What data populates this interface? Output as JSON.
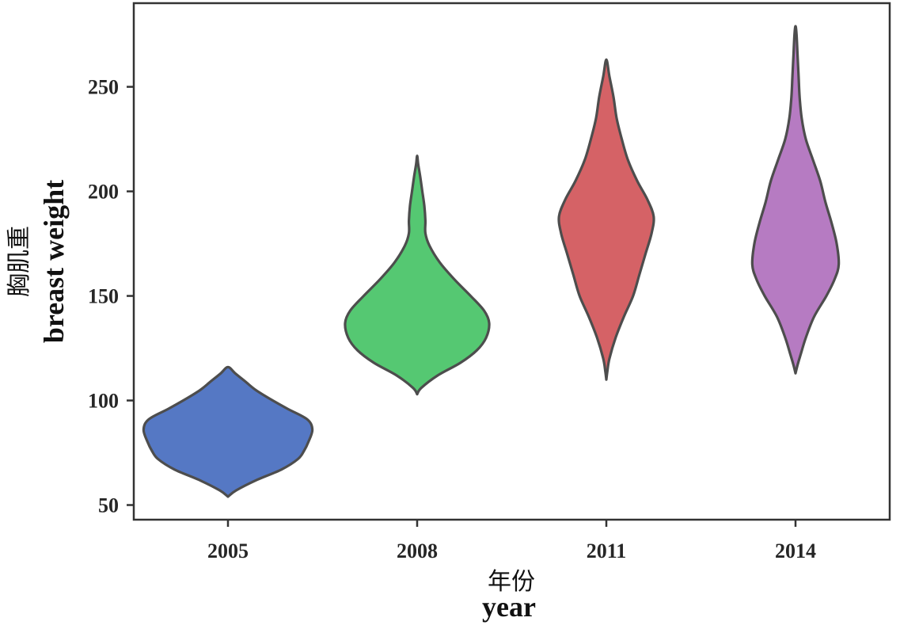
{
  "chart_data": {
    "type": "violin",
    "xlabel_cn": "年份",
    "xlabel_en": "year",
    "ylabel_cn": "胸肌重",
    "ylabel_en": "breast weight",
    "categories": [
      "2005",
      "2008",
      "2011",
      "2014"
    ],
    "yticks": [
      50,
      100,
      150,
      200,
      250
    ],
    "ylim": [
      43,
      290
    ],
    "series": [
      {
        "name": "2005",
        "color": "#5578c4",
        "min": 54,
        "max": 116,
        "profile": [
          [
            54,
            0
          ],
          [
            57,
            8
          ],
          [
            62,
            28
          ],
          [
            67,
            52
          ],
          [
            72,
            68
          ],
          [
            76,
            74
          ],
          [
            80,
            78
          ],
          [
            86,
            82
          ],
          [
            91,
            77
          ],
          [
            96,
            58
          ],
          [
            101,
            40
          ],
          [
            105,
            27
          ],
          [
            109,
            17
          ],
          [
            113,
            7
          ],
          [
            116,
            0
          ]
        ]
      },
      {
        "name": "2008",
        "color": "#55c872",
        "min": 103,
        "max": 217,
        "profile": [
          [
            103,
            0
          ],
          [
            106,
            4
          ],
          [
            112,
            20
          ],
          [
            118,
            42
          ],
          [
            124,
            58
          ],
          [
            130,
            67
          ],
          [
            137,
            70
          ],
          [
            143,
            65
          ],
          [
            150,
            52
          ],
          [
            158,
            36
          ],
          [
            166,
            22
          ],
          [
            174,
            12
          ],
          [
            180,
            8
          ],
          [
            186,
            8
          ],
          [
            193,
            7
          ],
          [
            200,
            5
          ],
          [
            207,
            3
          ],
          [
            213,
            1
          ],
          [
            217,
            0
          ]
        ]
      },
      {
        "name": "2011",
        "color": "#d56266",
        "min": 110,
        "max": 263,
        "profile": [
          [
            110,
            0
          ],
          [
            114,
            1
          ],
          [
            120,
            3
          ],
          [
            130,
            9
          ],
          [
            140,
            17
          ],
          [
            150,
            26
          ],
          [
            160,
            32
          ],
          [
            170,
            38
          ],
          [
            180,
            44
          ],
          [
            188,
            46
          ],
          [
            196,
            40
          ],
          [
            205,
            30
          ],
          [
            215,
            21
          ],
          [
            225,
            15
          ],
          [
            235,
            10
          ],
          [
            245,
            7
          ],
          [
            255,
            3
          ],
          [
            263,
            0
          ]
        ]
      },
      {
        "name": "2014",
        "color": "#b67bc2",
        "min": 113,
        "max": 279,
        "profile": [
          [
            113,
            0
          ],
          [
            117,
            2
          ],
          [
            122,
            5
          ],
          [
            130,
            10
          ],
          [
            140,
            18
          ],
          [
            150,
            30
          ],
          [
            158,
            38
          ],
          [
            165,
            42
          ],
          [
            175,
            40
          ],
          [
            185,
            35
          ],
          [
            195,
            29
          ],
          [
            205,
            24
          ],
          [
            215,
            17
          ],
          [
            225,
            10
          ],
          [
            235,
            6
          ],
          [
            245,
            4
          ],
          [
            255,
            3
          ],
          [
            265,
            2
          ],
          [
            275,
            1
          ],
          [
            279,
            0
          ]
        ]
      }
    ]
  }
}
